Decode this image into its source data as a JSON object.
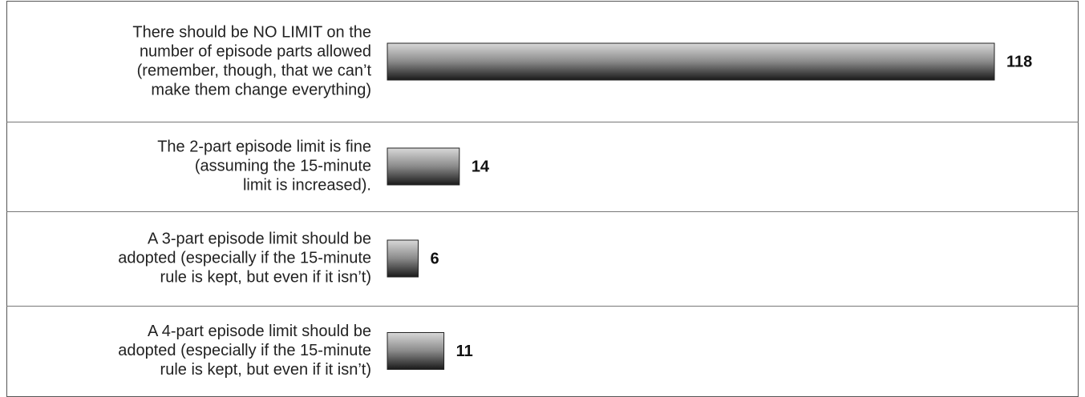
{
  "chart_data": {
    "type": "bar",
    "orientation": "horizontal",
    "categories": [
      [
        "There should be NO LIMIT on the",
        "number of episode parts allowed",
        "(remember, though, that we can’t",
        "make them change everything)"
      ],
      [
        "The 2-part episode limit is fine",
        "(assuming the 15-minute",
        "limit is increased)."
      ],
      [
        "A 3-part episode limit should be",
        "adopted (especially if the 15-minute",
        "rule is kept, but even if it isn’t)"
      ],
      [
        "A 4-part episode limit should be",
        "adopted (especially if the 15-minute",
        "rule is kept, but even if it isn’t)"
      ]
    ],
    "values": [
      118,
      14,
      6,
      11
    ]
  }
}
